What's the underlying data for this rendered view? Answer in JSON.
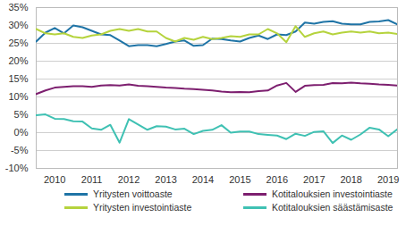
{
  "chart_data": {
    "type": "line",
    "x": [
      2010,
      2010.25,
      2010.5,
      2010.75,
      2011,
      2011.25,
      2011.5,
      2011.75,
      2012,
      2012.25,
      2012.5,
      2012.75,
      2013,
      2013.25,
      2013.5,
      2013.75,
      2014,
      2014.25,
      2014.5,
      2014.75,
      2015,
      2015.25,
      2015.5,
      2015.75,
      2016,
      2016.25,
      2016.5,
      2016.75,
      2017,
      2017.25,
      2017.5,
      2017.75,
      2018,
      2018.25,
      2018.5,
      2018.75,
      2019,
      2019.25,
      2019.5,
      2019.75
    ],
    "series": [
      {
        "name": "Yritysten voittoaste",
        "color": "#1f74a6",
        "values": [
          25.5,
          28,
          29.3,
          27.8,
          30,
          29.5,
          28.5,
          27.5,
          27.3,
          25.8,
          24.2,
          24.5,
          24.5,
          24.2,
          24.8,
          25.5,
          25.8,
          24.3,
          24.5,
          26.3,
          26.2,
          25.8,
          25.5,
          26.5,
          27.2,
          26.2,
          27.5,
          27.3,
          28.3,
          30.8,
          30.5,
          31,
          31.2,
          30.5,
          30.3,
          30.3,
          31,
          31.1,
          31.5,
          30.3
        ]
      },
      {
        "name": "Kotitalouksien investointiaste",
        "color": "#7d1f6f",
        "values": [
          10.8,
          11.8,
          12.6,
          12.8,
          13,
          13,
          12.8,
          13.2,
          13.3,
          13.2,
          13.5,
          13.1,
          13,
          12.8,
          12.6,
          12.5,
          12.3,
          12.2,
          12,
          11.8,
          11.5,
          11.3,
          11.4,
          11.3,
          11.6,
          11.8,
          13.2,
          13.9,
          11.4,
          13.1,
          13.3,
          13.4,
          13.9,
          13.8,
          14,
          13.8,
          13.7,
          13.5,
          13.4,
          13.2
        ]
      },
      {
        "name": "Yritysten investointiaste",
        "color": "#b5d33d",
        "values": [
          29,
          27.8,
          27.5,
          27.8,
          26.8,
          26.5,
          27.2,
          27.5,
          28.5,
          29,
          28.5,
          29,
          28.3,
          28.3,
          26.5,
          25.5,
          26.5,
          26,
          26.8,
          26.2,
          26.5,
          27,
          26.8,
          27.5,
          27.5,
          29,
          27.8,
          25.3,
          29.8,
          26.8,
          27.8,
          28.3,
          27.5,
          28,
          28.3,
          28,
          28.3,
          27.8,
          28,
          27.6
        ]
      },
      {
        "name": "Kotitalouksien säästämisaste",
        "color": "#3fc1b3",
        "values": [
          4.9,
          5.1,
          3.9,
          3.8,
          3.2,
          3.1,
          1.2,
          0.8,
          2.2,
          -2.8,
          3.8,
          2.3,
          0.8,
          1.8,
          1.7,
          0.9,
          1.1,
          -0.4,
          0.5,
          0.8,
          2.1,
          0,
          0.3,
          0.3,
          -0.4,
          -0.6,
          -0.8,
          -1.8,
          -0.3,
          -0.9,
          0.2,
          0.4,
          -2.9,
          -0.8,
          -2,
          -0.5,
          1.4,
          0.9,
          -1,
          1
        ]
      }
    ],
    "xlim": [
      2010,
      2019.75
    ],
    "xticks": [
      {
        "value": 2010.5,
        "label": "2010"
      },
      {
        "value": 2011.5,
        "label": "2011"
      },
      {
        "value": 2012.5,
        "label": "2012"
      },
      {
        "value": 2013.5,
        "label": "2013"
      },
      {
        "value": 2014.5,
        "label": "2014"
      },
      {
        "value": 2015.5,
        "label": "2015"
      },
      {
        "value": 2016.5,
        "label": "2016"
      },
      {
        "value": 2017.5,
        "label": "2017"
      },
      {
        "value": 2018.5,
        "label": "2018"
      },
      {
        "value": 2019.5,
        "label": "2019"
      }
    ],
    "ylim": [
      -10,
      35
    ],
    "yticks": [
      {
        "value": -10,
        "label": "-10%"
      },
      {
        "value": -5,
        "label": "-5%"
      },
      {
        "value": 0,
        "label": "0%"
      },
      {
        "value": 5,
        "label": "5%"
      },
      {
        "value": 10,
        "label": "10%"
      },
      {
        "value": 15,
        "label": "15%"
      },
      {
        "value": 20,
        "label": "20%"
      },
      {
        "value": 25,
        "label": "25%"
      },
      {
        "value": 30,
        "label": "30%"
      },
      {
        "value": 35,
        "label": "35%"
      }
    ],
    "grid": true,
    "legend": "bottom"
  }
}
